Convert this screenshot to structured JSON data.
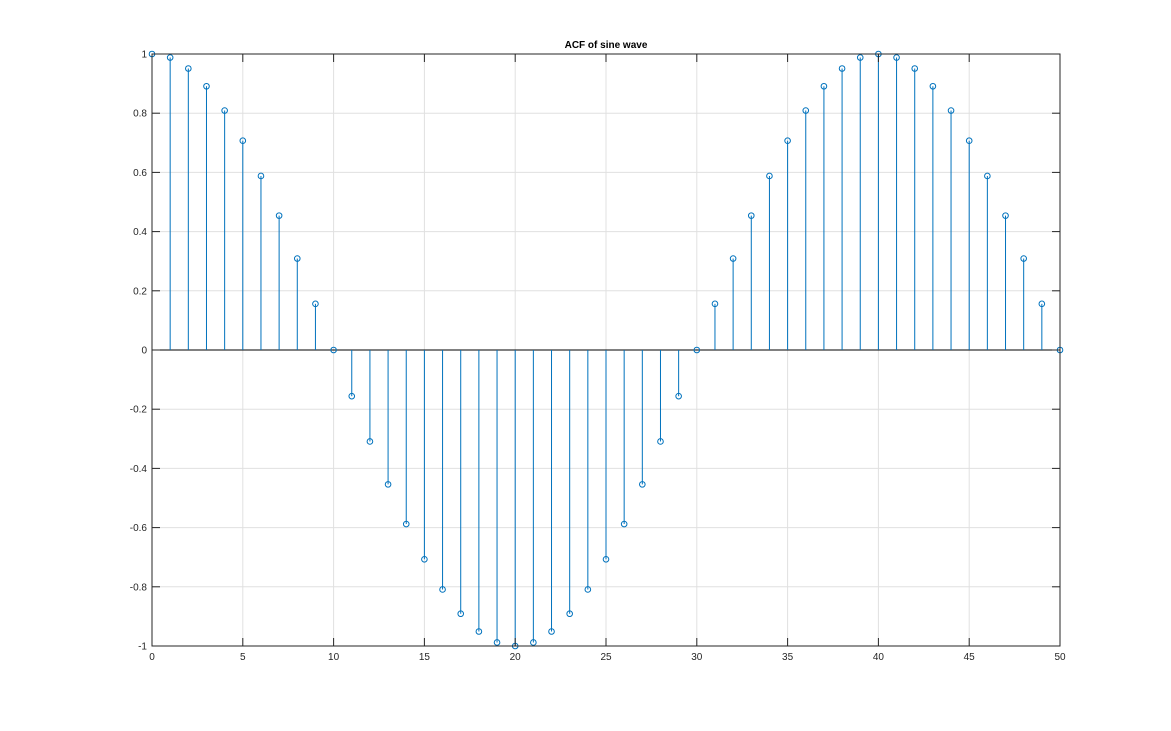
{
  "chart_data": {
    "type": "stem",
    "title": "ACF of sine wave",
    "xlabel": "",
    "ylabel": "",
    "xlim": [
      0,
      50
    ],
    "ylim": [
      -1,
      1
    ],
    "grid": true,
    "legend": "none",
    "colors": {
      "series": "#0072bd",
      "grid": "#e0e0e0",
      "axis": "#262626"
    },
    "x_ticks": [
      0,
      5,
      10,
      15,
      20,
      25,
      30,
      35,
      40,
      45,
      50
    ],
    "x_tick_labels": [
      "0",
      "5",
      "10",
      "15",
      "20",
      "25",
      "30",
      "35",
      "40",
      "45",
      "50"
    ],
    "y_ticks": [
      -1,
      -0.8,
      -0.6,
      -0.4,
      -0.2,
      0,
      0.2,
      0.4,
      0.6,
      0.8,
      1
    ],
    "y_tick_labels": [
      "-1",
      "-0.8",
      "-0.6",
      "-0.4",
      "-0.2",
      "0",
      "0.2",
      "0.4",
      "0.6",
      "0.8",
      "1"
    ],
    "x": [
      0,
      1,
      2,
      3,
      4,
      5,
      6,
      7,
      8,
      9,
      10,
      11,
      12,
      13,
      14,
      15,
      16,
      17,
      18,
      19,
      20,
      21,
      22,
      23,
      24,
      25,
      26,
      27,
      28,
      29,
      30,
      31,
      32,
      33,
      34,
      35,
      36,
      37,
      38,
      39,
      40,
      41,
      42,
      43,
      44,
      45,
      46,
      47,
      48,
      49,
      50
    ],
    "values": [
      1.0,
      0.988,
      0.951,
      0.891,
      0.809,
      0.707,
      0.588,
      0.454,
      0.309,
      0.156,
      0.0,
      -0.156,
      -0.309,
      -0.454,
      -0.588,
      -0.707,
      -0.809,
      -0.891,
      -0.951,
      -0.988,
      -1.0,
      -0.988,
      -0.951,
      -0.891,
      -0.809,
      -0.707,
      -0.588,
      -0.454,
      -0.309,
      -0.156,
      0.0,
      0.156,
      0.309,
      0.454,
      0.588,
      0.707,
      0.809,
      0.891,
      0.951,
      0.988,
      1.0,
      0.988,
      0.951,
      0.891,
      0.809,
      0.707,
      0.588,
      0.454,
      0.309,
      0.156,
      0.0
    ]
  }
}
